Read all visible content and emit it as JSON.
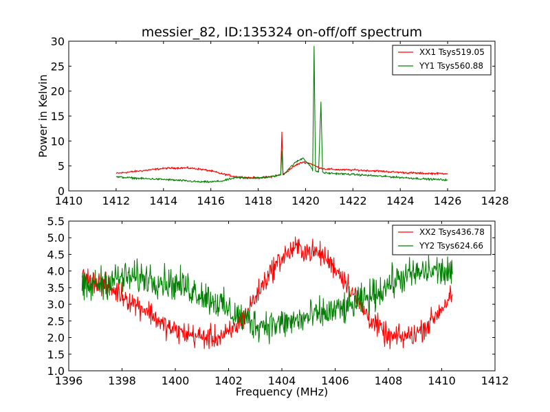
{
  "chart_data": [
    {
      "type": "line",
      "title": "messier_82, ID:135324 on-off/off spectrum",
      "xlabel": "",
      "ylabel": "Power in Kelvin",
      "xlim": [
        1410,
        1428
      ],
      "ylim": [
        0,
        30
      ],
      "xticks": [
        1410,
        1412,
        1414,
        1416,
        1418,
        1420,
        1422,
        1424,
        1426,
        1428
      ],
      "yticks": [
        0,
        5,
        10,
        15,
        20,
        25,
        30
      ],
      "legend_position": "top-right",
      "series": [
        {
          "name": "XX1 Tsys519.05",
          "color": "#ff0000",
          "x": [
            1412,
            1413,
            1414,
            1414.5,
            1415,
            1415.5,
            1416,
            1416.5,
            1417,
            1417.5,
            1418,
            1418.5,
            1418.95,
            1419.0,
            1419.05,
            1419.3,
            1419.6,
            1419.9,
            1420.2,
            1420.5,
            1420.8,
            1421.2,
            1421.6,
            1422,
            1423,
            1424,
            1425,
            1426
          ],
          "y": [
            3.5,
            4.0,
            4.5,
            4.6,
            4.6,
            4.4,
            4.0,
            3.4,
            2.9,
            2.7,
            2.6,
            2.8,
            3.2,
            11.8,
            3.2,
            4.2,
            5.2,
            5.8,
            5.5,
            4.8,
            4.4,
            4.3,
            4.2,
            4.2,
            4.0,
            3.7,
            3.5,
            3.5
          ]
        },
        {
          "name": "YY1 Tsys560.88",
          "color": "#008000",
          "x": [
            1412,
            1413,
            1414,
            1415,
            1415.5,
            1416,
            1416.5,
            1417,
            1417.5,
            1418,
            1418.5,
            1418.95,
            1419.0,
            1419.05,
            1419.3,
            1419.6,
            1419.9,
            1420.2,
            1420.3,
            1420.36,
            1420.42,
            1420.55,
            1420.65,
            1420.72,
            1420.8,
            1421.2,
            1421.6,
            1422,
            1423,
            1424,
            1425,
            1426
          ],
          "y": [
            2.8,
            2.5,
            2.3,
            2.0,
            1.8,
            1.8,
            2.0,
            2.6,
            2.6,
            2.6,
            2.8,
            3.2,
            8.0,
            3.2,
            4.5,
            5.8,
            6.6,
            5.0,
            4.0,
            29.0,
            4.0,
            3.8,
            17.8,
            3.8,
            3.6,
            3.5,
            3.4,
            3.3,
            3.0,
            2.7,
            2.4,
            2.2
          ]
        }
      ]
    },
    {
      "type": "line",
      "title": "",
      "xlabel": "Frequency (MHz)",
      "ylabel": "",
      "xlim": [
        1396,
        1412
      ],
      "ylim": [
        1.0,
        5.5
      ],
      "xticks": [
        1396,
        1398,
        1400,
        1402,
        1404,
        1406,
        1408,
        1410,
        1412
      ],
      "yticks": [
        1.0,
        1.5,
        2.0,
        2.5,
        3.0,
        3.5,
        4.0,
        4.5,
        5.0,
        5.5
      ],
      "legend_position": "top-right",
      "series": [
        {
          "name": "XX2 Tsys436.78",
          "color": "#ff0000",
          "x": [
            1396.5,
            1397,
            1397.5,
            1398,
            1398.5,
            1399,
            1399.5,
            1400,
            1400.5,
            1401,
            1401.5,
            1402,
            1402.5,
            1403,
            1403.5,
            1404,
            1404.5,
            1405,
            1405.5,
            1406,
            1406.5,
            1407,
            1407.5,
            1408,
            1408.5,
            1409,
            1409.5,
            1410,
            1410.4
          ],
          "y": [
            3.8,
            3.7,
            3.5,
            3.3,
            3.0,
            2.8,
            2.4,
            2.2,
            2.1,
            2.0,
            2.0,
            2.1,
            2.5,
            3.2,
            3.9,
            4.4,
            4.7,
            4.6,
            4.5,
            4.1,
            3.6,
            2.9,
            2.4,
            2.0,
            2.0,
            2.1,
            2.4,
            2.9,
            3.3
          ],
          "noise": 0.3
        },
        {
          "name": "YY2 Tsys624.66",
          "color": "#008000",
          "x": [
            1396.5,
            1397,
            1397.5,
            1398,
            1398.5,
            1399,
            1399.5,
            1400,
            1400.5,
            1401,
            1401.5,
            1402,
            1402.5,
            1403,
            1403.5,
            1404,
            1404.5,
            1405,
            1405.5,
            1406,
            1406.5,
            1407,
            1407.5,
            1408,
            1408.5,
            1409,
            1409.5,
            1410,
            1410.4
          ],
          "y": [
            3.4,
            3.6,
            3.7,
            3.8,
            3.8,
            3.8,
            3.7,
            3.6,
            3.5,
            3.3,
            3.1,
            2.8,
            2.6,
            2.4,
            2.4,
            2.4,
            2.5,
            2.6,
            2.7,
            2.8,
            2.9,
            3.1,
            3.3,
            3.6,
            3.8,
            3.9,
            4.0,
            4.0,
            3.9
          ],
          "noise": 0.42
        }
      ]
    }
  ]
}
